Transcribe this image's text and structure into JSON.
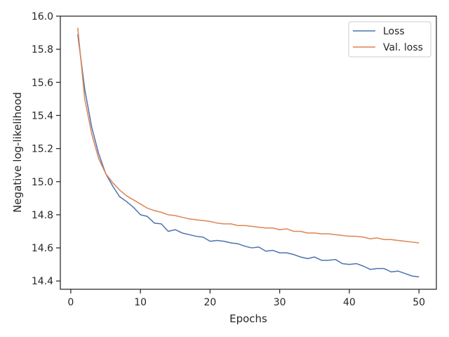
{
  "chart_data": {
    "type": "line",
    "title": "",
    "xlabel": "Epochs",
    "ylabel": "Negative log-likelihood",
    "xlim": [
      -1.5,
      52.5
    ],
    "ylim": [
      14.35,
      16.0
    ],
    "xticks": [
      0,
      10,
      20,
      30,
      40,
      50
    ],
    "xtick_labels": [
      "0",
      "10",
      "20",
      "30",
      "40",
      "50"
    ],
    "yticks": [
      14.4,
      14.6,
      14.8,
      15.0,
      15.2,
      15.4,
      15.6,
      15.8,
      16.0
    ],
    "ytick_labels": [
      "14.4",
      "14.6",
      "14.8",
      "15.0",
      "15.2",
      "15.4",
      "15.6",
      "15.8",
      "16.0"
    ],
    "grid": false,
    "legend_position": "top-right",
    "x": [
      1,
      2,
      3,
      4,
      5,
      6,
      7,
      8,
      9,
      10,
      11,
      12,
      13,
      14,
      15,
      16,
      17,
      18,
      19,
      20,
      21,
      22,
      23,
      24,
      25,
      26,
      27,
      28,
      29,
      30,
      31,
      32,
      33,
      34,
      35,
      36,
      37,
      38,
      39,
      40,
      41,
      42,
      43,
      44,
      45,
      46,
      47,
      48,
      49,
      50
    ],
    "series": [
      {
        "name": "Loss",
        "color": "#4c72b0",
        "values": [
          15.89,
          15.56,
          15.33,
          15.17,
          15.05,
          14.975,
          14.91,
          14.88,
          14.845,
          14.8,
          14.79,
          14.75,
          14.745,
          14.7,
          14.71,
          14.69,
          14.68,
          14.67,
          14.665,
          14.64,
          14.645,
          14.64,
          14.63,
          14.625,
          14.61,
          14.6,
          14.605,
          14.58,
          14.585,
          14.57,
          14.57,
          14.56,
          14.545,
          14.535,
          14.545,
          14.525,
          14.525,
          14.53,
          14.505,
          14.5,
          14.505,
          14.49,
          14.47,
          14.475,
          14.475,
          14.455,
          14.46,
          14.445,
          14.43,
          14.425
        ]
      },
      {
        "name": "Val. loss",
        "color": "#dd8452",
        "values": [
          15.93,
          15.5,
          15.29,
          15.14,
          15.05,
          14.995,
          14.95,
          14.915,
          14.89,
          14.865,
          14.84,
          14.825,
          14.815,
          14.8,
          14.795,
          14.785,
          14.775,
          14.77,
          14.765,
          14.76,
          14.75,
          14.745,
          14.745,
          14.735,
          14.735,
          14.73,
          14.725,
          14.72,
          14.72,
          14.71,
          14.715,
          14.7,
          14.7,
          14.69,
          14.69,
          14.685,
          14.685,
          14.68,
          14.675,
          14.67,
          14.67,
          14.665,
          14.655,
          14.66,
          14.65,
          14.65,
          14.645,
          14.64,
          14.635,
          14.63
        ]
      }
    ]
  }
}
